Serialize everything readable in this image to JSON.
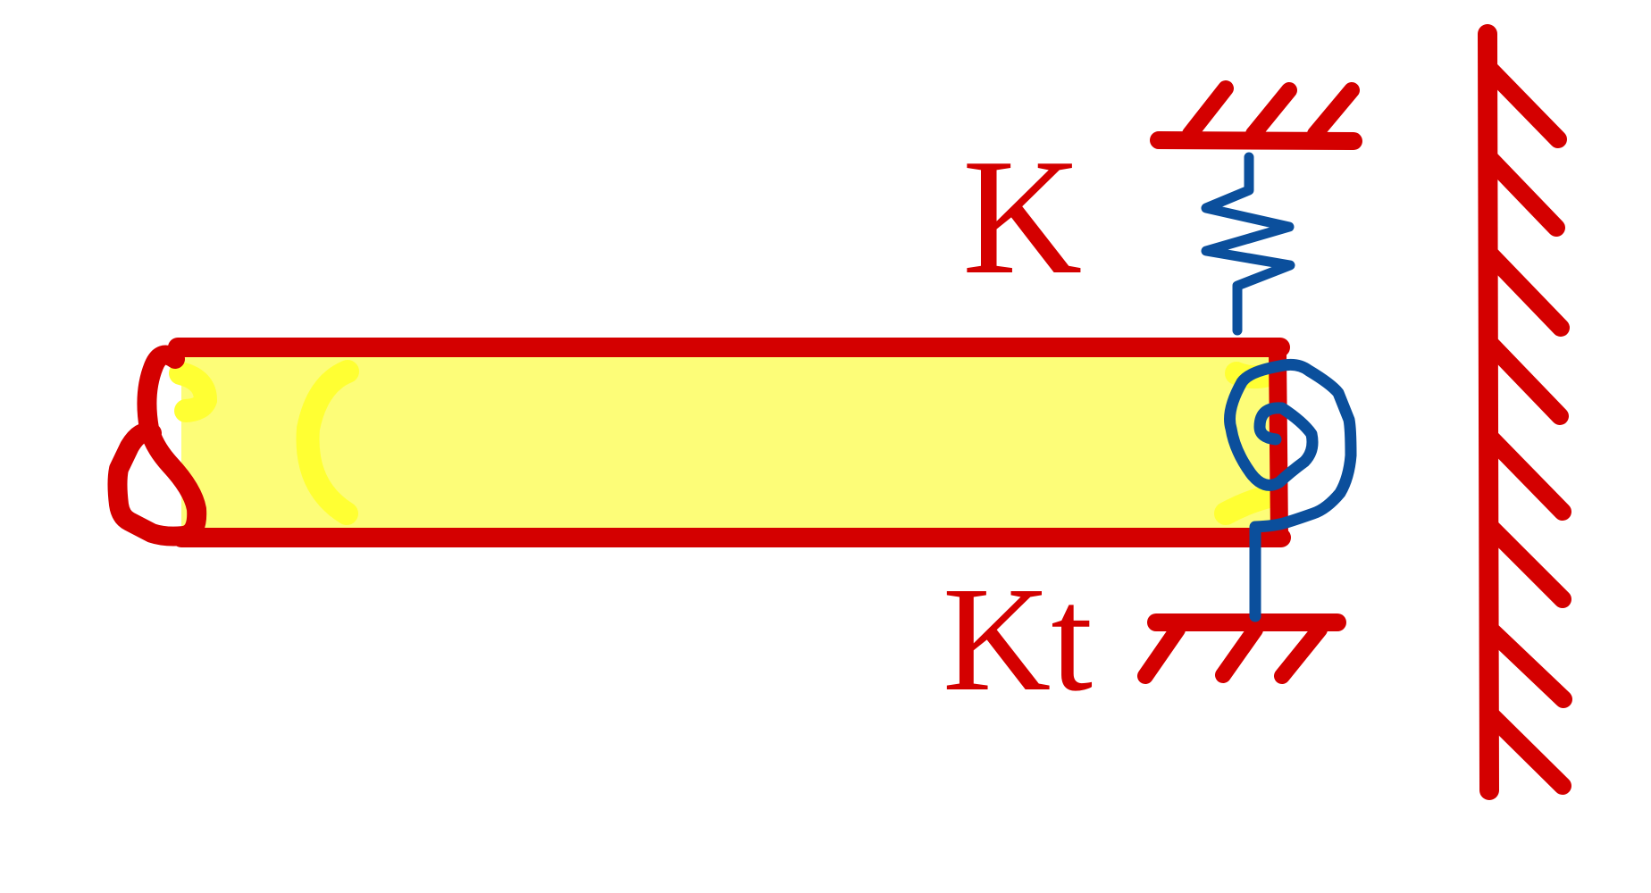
{
  "labels": {
    "spring": "K",
    "torsional_spring": "Kt"
  },
  "colors": {
    "structure": "#d40000",
    "beam_fill": "#fdfd78",
    "beam_shading": "#ffff33",
    "spring": "#0b4f9c",
    "background": "#ffffff"
  }
}
